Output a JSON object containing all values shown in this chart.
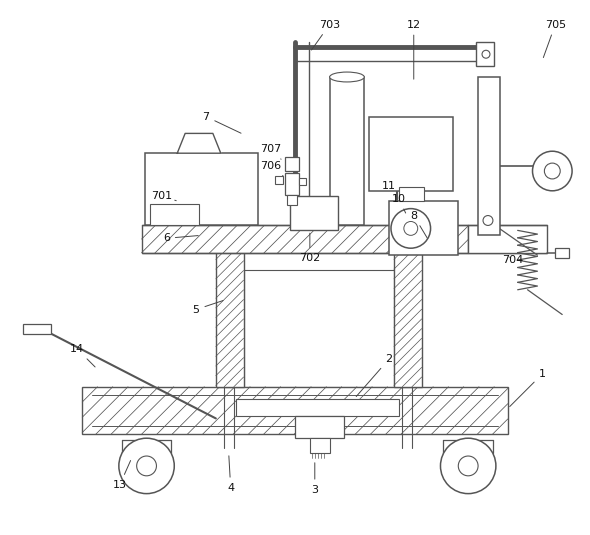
{
  "bg_color": "#ffffff",
  "line_color": "#555555",
  "fig_width": 5.9,
  "fig_height": 5.35,
  "dpi": 100
}
